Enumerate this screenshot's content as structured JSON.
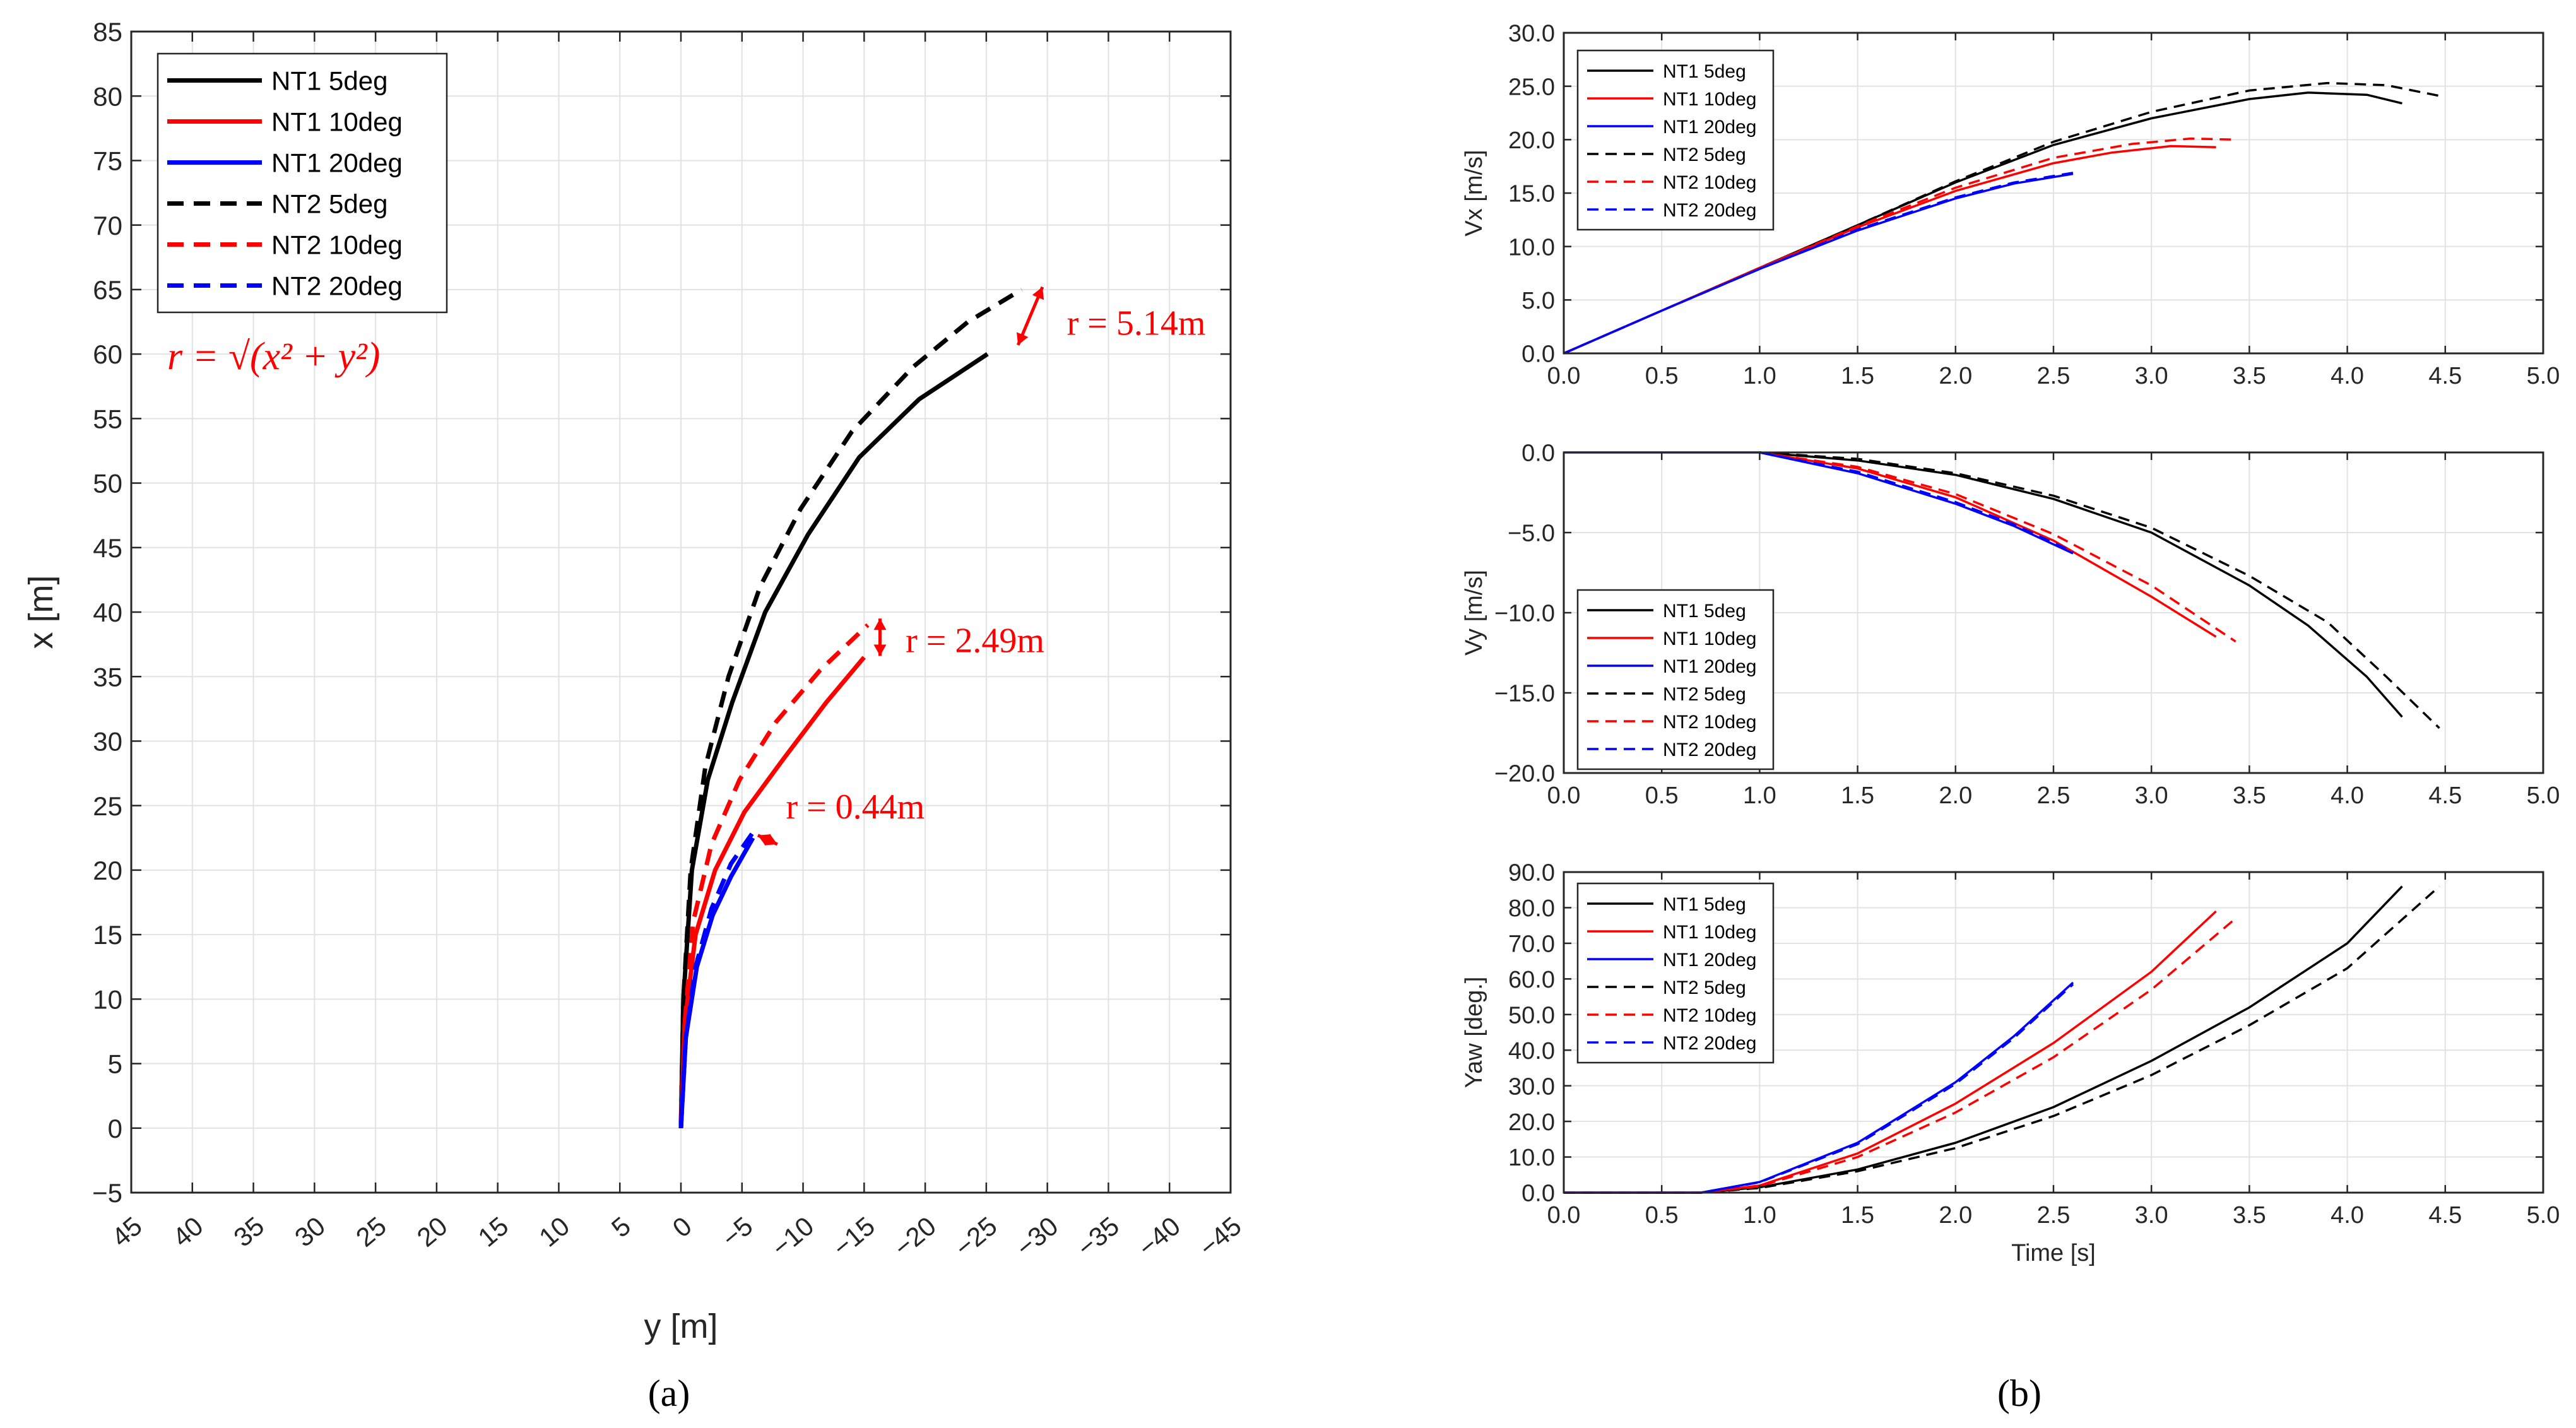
{
  "colors": {
    "NT1_5": "#000000",
    "NT1_10": "#ff0000",
    "NT1_20": "#0000ff",
    "grid": "#e2e2e2",
    "annotation": "#ff0000"
  },
  "panel_labels": {
    "a": "(a)",
    "b": "(b)"
  },
  "chart_data": [
    {
      "id": "a",
      "type": "line",
      "title": "",
      "xlabel": "y [m]",
      "ylabel": "x [m]",
      "xlim": [
        45,
        -45
      ],
      "ylim": [
        -5,
        85
      ],
      "xticks": [
        45,
        40,
        35,
        30,
        25,
        20,
        15,
        10,
        5,
        0,
        -5,
        -10,
        -15,
        -20,
        -25,
        -30,
        -35,
        -40,
        -45
      ],
      "xtick_labels": [
        "45",
        "40",
        "35",
        "30",
        "25",
        "20",
        "15",
        "10",
        "5",
        "0",
        "−5",
        "−10",
        "−15",
        "−20",
        "−25",
        "−30",
        "−35",
        "−40",
        "−45"
      ],
      "yticks": [
        -5,
        0,
        5,
        10,
        15,
        20,
        25,
        30,
        35,
        40,
        45,
        50,
        55,
        60,
        65,
        70,
        75,
        80,
        85
      ],
      "ytick_labels": [
        "−5",
        "0",
        "5",
        "10",
        "15",
        "20",
        "25",
        "30",
        "35",
        "40",
        "45",
        "50",
        "55",
        "60",
        "65",
        "70",
        "75",
        "80",
        "85"
      ],
      "grid": true,
      "legend": "top-left",
      "series": [
        {
          "name": "NT1 5deg",
          "color": "#000000",
          "dash": false,
          "x": [
            0,
            -0.2,
            -0.9,
            -2.2,
            -4.2,
            -6.9,
            -10.4,
            -14.6,
            -19.5,
            -25.1
          ],
          "y": [
            0,
            10,
            20,
            27,
            33,
            40,
            46,
            52,
            56.5,
            60
          ]
        },
        {
          "name": "NT1 10deg",
          "color": "#ff0000",
          "dash": false,
          "x": [
            0,
            -0.3,
            -1.2,
            -2.8,
            -5.2,
            -8.3,
            -11.9,
            -15.0
          ],
          "y": [
            0,
            8,
            15,
            20,
            24.5,
            28.5,
            33,
            36.5
          ]
        },
        {
          "name": "NT1 20deg",
          "color": "#0000ff",
          "dash": false,
          "x": [
            0,
            -0.4,
            -1.3,
            -2.6,
            -4.1,
            -5.9
          ],
          "y": [
            0,
            7,
            12.5,
            16.5,
            19.5,
            22.5
          ]
        },
        {
          "name": "NT2 5deg",
          "color": "#000000",
          "dash": true,
          "x": [
            0,
            -0.2,
            -0.8,
            -2.0,
            -3.9,
            -6.5,
            -9.8,
            -14.0,
            -19.0,
            -23.5,
            -27.9
          ],
          "y": [
            0,
            10,
            20,
            28,
            35,
            42,
            48,
            54,
            59,
            62.5,
            65
          ]
        },
        {
          "name": "NT2 10deg",
          "color": "#ff0000",
          "dash": true,
          "x": [
            0,
            -0.3,
            -1.0,
            -2.5,
            -4.8,
            -7.8,
            -11.4,
            -15.3
          ],
          "y": [
            0,
            8,
            16,
            22,
            27,
            31.5,
            35.5,
            39
          ]
        },
        {
          "name": "NT2 20deg",
          "color": "#0000ff",
          "dash": true,
          "x": [
            0,
            -0.4,
            -1.2,
            -2.5,
            -4.1,
            -6.1
          ],
          "y": [
            0,
            7,
            12.5,
            17,
            20.5,
            23.2
          ]
        }
      ],
      "annotations": {
        "formula": "r = √(x² + y²)",
        "r1": "r = 5.14m",
        "r2": "r = 2.49m",
        "r3": "r = 0.44m"
      }
    },
    {
      "id": "b1",
      "type": "line",
      "title": "",
      "xlabel": "",
      "ylabel": "Vx [m/s]",
      "xlim": [
        0,
        5
      ],
      "ylim": [
        0,
        30
      ],
      "xticks": [
        0,
        0.5,
        1,
        1.5,
        2,
        2.5,
        3,
        3.5,
        4,
        4.5,
        5
      ],
      "xtick_labels": [
        "0.0",
        "0.5",
        "1.0",
        "1.5",
        "2.0",
        "2.5",
        "3.0",
        "3.5",
        "4.0",
        "4.5",
        "5.0"
      ],
      "yticks": [
        0,
        5,
        10,
        15,
        20,
        25,
        30
      ],
      "ytick_labels": [
        "0.0",
        "5.0",
        "10.0",
        "15.0",
        "20.0",
        "25.0",
        "30.0"
      ],
      "grid": true,
      "legend": "top-left",
      "series": [
        {
          "name": "NT1 5deg",
          "color": "#000000",
          "dash": false,
          "x": [
            0,
            0.5,
            1,
            1.5,
            2,
            2.5,
            3,
            3.5,
            3.8,
            4.1,
            4.28
          ],
          "y": [
            0,
            4,
            8,
            12,
            16,
            19.5,
            22,
            23.8,
            24.4,
            24.2,
            23.4
          ]
        },
        {
          "name": "NT1 10deg",
          "color": "#ff0000",
          "dash": false,
          "x": [
            0,
            0.5,
            1,
            1.5,
            2,
            2.5,
            2.8,
            3.1,
            3.33
          ],
          "y": [
            0,
            4,
            8,
            11.8,
            15.2,
            17.8,
            18.8,
            19.4,
            19.3
          ]
        },
        {
          "name": "NT1 20deg",
          "color": "#0000ff",
          "dash": false,
          "x": [
            0,
            0.5,
            1,
            1.5,
            2,
            2.3,
            2.6
          ],
          "y": [
            0,
            4,
            7.9,
            11.5,
            14.5,
            15.9,
            16.8
          ]
        },
        {
          "name": "NT2 5deg",
          "color": "#000000",
          "dash": true,
          "x": [
            0,
            0.5,
            1,
            1.5,
            2,
            2.5,
            3,
            3.5,
            3.9,
            4.2,
            4.47
          ],
          "y": [
            0,
            4,
            8,
            12,
            16.1,
            19.8,
            22.6,
            24.6,
            25.3,
            25.1,
            24.1
          ]
        },
        {
          "name": "NT2 10deg",
          "color": "#ff0000",
          "dash": true,
          "x": [
            0,
            0.5,
            1,
            1.5,
            2,
            2.5,
            2.9,
            3.2,
            3.43
          ],
          "y": [
            0,
            4,
            8,
            11.9,
            15.5,
            18.3,
            19.6,
            20.1,
            20.0
          ]
        },
        {
          "name": "NT2 20deg",
          "color": "#0000ff",
          "dash": true,
          "x": [
            0,
            0.5,
            1,
            1.5,
            2,
            2.3,
            2.6
          ],
          "y": [
            0,
            4,
            7.9,
            11.6,
            14.6,
            16.0,
            16.9
          ]
        }
      ]
    },
    {
      "id": "b2",
      "type": "line",
      "title": "",
      "xlabel": "",
      "ylabel": "Vy [m/s]",
      "xlim": [
        0,
        5
      ],
      "ylim": [
        -20,
        0
      ],
      "xticks": [
        0,
        0.5,
        1,
        1.5,
        2,
        2.5,
        3,
        3.5,
        4,
        4.5,
        5
      ],
      "xtick_labels": [
        "0.0",
        "0.5",
        "1.0",
        "1.5",
        "2.0",
        "2.5",
        "3.0",
        "3.5",
        "4.0",
        "4.5",
        "5.0"
      ],
      "yticks": [
        -20,
        -15,
        -10,
        -5,
        0
      ],
      "ytick_labels": [
        "−20.0",
        "−15.0",
        "−10.0",
        "−5.0",
        "0.0"
      ],
      "grid": true,
      "legend": "bottom-left",
      "series": [
        {
          "name": "NT1 5deg",
          "color": "#000000",
          "dash": false,
          "x": [
            1.0,
            1.5,
            2.0,
            2.5,
            3.0,
            3.5,
            3.8,
            4.1,
            4.28
          ],
          "y": [
            0,
            -0.5,
            -1.4,
            -2.9,
            -5.0,
            -8.3,
            -10.8,
            -14.0,
            -16.5
          ]
        },
        {
          "name": "NT1 10deg",
          "color": "#ff0000",
          "dash": false,
          "x": [
            1.0,
            1.5,
            2.0,
            2.5,
            3.0,
            3.33
          ],
          "y": [
            0,
            -1.0,
            -2.8,
            -5.5,
            -9.0,
            -11.5
          ]
        },
        {
          "name": "NT1 20deg",
          "color": "#0000ff",
          "dash": false,
          "x": [
            0,
            0.65,
            1.0,
            1.5,
            2.0,
            2.3,
            2.6
          ],
          "y": [
            0,
            0,
            0,
            -1.3,
            -3.2,
            -4.6,
            -6.3
          ]
        },
        {
          "name": "NT2 5deg",
          "color": "#000000",
          "dash": true,
          "x": [
            1.0,
            1.5,
            2.0,
            2.5,
            3.0,
            3.5,
            3.9,
            4.2,
            4.47
          ],
          "y": [
            0,
            -0.4,
            -1.3,
            -2.7,
            -4.7,
            -7.7,
            -10.6,
            -14.0,
            -17.2
          ]
        },
        {
          "name": "NT2 10deg",
          "color": "#ff0000",
          "dash": true,
          "x": [
            1.0,
            1.5,
            2.0,
            2.5,
            3.0,
            3.43
          ],
          "y": [
            0,
            -0.9,
            -2.6,
            -5.1,
            -8.3,
            -11.8
          ]
        },
        {
          "name": "NT2 20deg",
          "color": "#0000ff",
          "dash": true,
          "x": [
            1.0,
            1.5,
            2.0,
            2.3,
            2.6
          ],
          "y": [
            0,
            -1.2,
            -3.1,
            -4.5,
            -6.2
          ]
        }
      ]
    },
    {
      "id": "b3",
      "type": "line",
      "title": "",
      "xlabel": "Time [s]",
      "ylabel": "Yaw [deg.]",
      "xlim": [
        0,
        5
      ],
      "ylim": [
        0,
        90
      ],
      "xticks": [
        0,
        0.5,
        1,
        1.5,
        2,
        2.5,
        3,
        3.5,
        4,
        4.5,
        5
      ],
      "xtick_labels": [
        "0.0",
        "0.5",
        "1.0",
        "1.5",
        "2.0",
        "2.5",
        "3.0",
        "3.5",
        "4.0",
        "4.5",
        "5.0"
      ],
      "yticks": [
        0,
        10,
        20,
        30,
        40,
        50,
        60,
        70,
        80,
        90
      ],
      "ytick_labels": [
        "0.0",
        "10.0",
        "20.0",
        "30.0",
        "40.0",
        "50.0",
        "60.0",
        "70.0",
        "80.0",
        "90.0"
      ],
      "grid": true,
      "legend": "top-left",
      "series": [
        {
          "name": "NT1 5deg",
          "color": "#000000",
          "dash": false,
          "x": [
            0,
            0.7,
            1.0,
            1.5,
            2.0,
            2.5,
            3.0,
            3.5,
            4.0,
            4.28
          ],
          "y": [
            0,
            0,
            1.5,
            6.5,
            14,
            24,
            37,
            52,
            70,
            86
          ]
        },
        {
          "name": "NT1 10deg",
          "color": "#ff0000",
          "dash": false,
          "x": [
            0,
            0.7,
            1.0,
            1.5,
            2.0,
            2.5,
            3.0,
            3.33
          ],
          "y": [
            0,
            0,
            2,
            11,
            25,
            42,
            62,
            79
          ]
        },
        {
          "name": "NT1 20deg",
          "color": "#0000ff",
          "dash": false,
          "x": [
            0,
            0.7,
            1.0,
            1.5,
            2.0,
            2.3,
            2.6
          ],
          "y": [
            0,
            0,
            3,
            14,
            31,
            44,
            59
          ]
        },
        {
          "name": "NT2 5deg",
          "color": "#000000",
          "dash": true,
          "x": [
            0,
            0.7,
            1.0,
            1.5,
            2.0,
            2.5,
            3.0,
            3.5,
            4.0,
            4.47
          ],
          "y": [
            0,
            0,
            1.3,
            6,
            12.5,
            21.5,
            33,
            47,
            63,
            86
          ]
        },
        {
          "name": "NT2 10deg",
          "color": "#ff0000",
          "dash": true,
          "x": [
            0,
            0.7,
            1.0,
            1.5,
            2.0,
            2.5,
            3.0,
            3.43
          ],
          "y": [
            0,
            0,
            1.8,
            10,
            22.5,
            38,
            57,
            77
          ]
        },
        {
          "name": "NT2 20deg",
          "color": "#0000ff",
          "dash": true,
          "x": [
            0,
            0.7,
            1.0,
            1.5,
            2.0,
            2.3,
            2.6
          ],
          "y": [
            0,
            0,
            2.9,
            13.6,
            30.5,
            43.5,
            58.5
          ]
        }
      ]
    }
  ]
}
